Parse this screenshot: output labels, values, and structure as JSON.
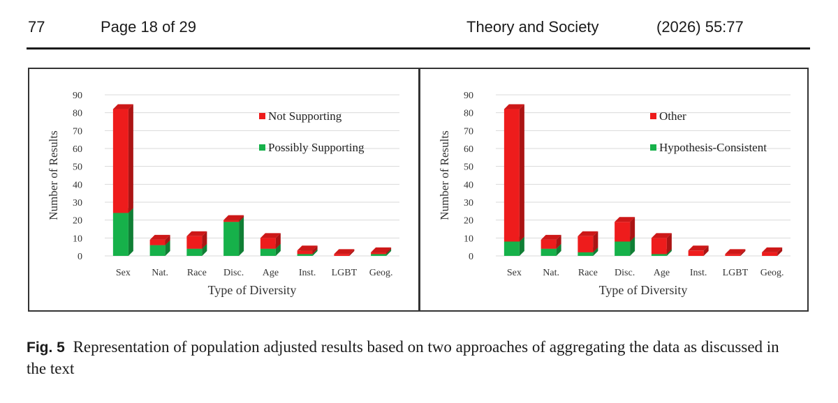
{
  "header": {
    "article_number": "77",
    "page_info": "Page 18 of 29",
    "journal": "Theory and Society",
    "volume": "(2026) 55:77"
  },
  "caption": {
    "label": "Fig. 5",
    "text": "Representation of population adjusted results based on two approaches of aggregating the data as discussed in the text"
  },
  "colors": {
    "red": "#ee1c1c",
    "green": "#16b14a",
    "grid": "#d9d9d9",
    "axis_text": "#333333"
  },
  "chart_data": [
    {
      "type": "bar",
      "stacked": true,
      "title": "",
      "xlabel": "Type of Diversity",
      "ylabel": "Number of Results",
      "ylim": [
        0,
        90
      ],
      "yticks": [
        0,
        10,
        20,
        30,
        40,
        50,
        60,
        70,
        80,
        90
      ],
      "grid": true,
      "legend_position": "top-right",
      "categories": [
        "Sex",
        "Nat.",
        "Race",
        "Disc.",
        "Age",
        "Inst.",
        "LGBT",
        "Geog."
      ],
      "series": [
        {
          "name": "Possibly Supporting",
          "color": "#16b14a",
          "values": [
            24,
            6,
            4,
            19,
            4,
            1,
            0,
            1
          ]
        },
        {
          "name": "Not Supporting",
          "color": "#ee1c1c",
          "values": [
            58,
            3,
            7,
            1,
            6,
            2,
            1,
            1
          ]
        }
      ]
    },
    {
      "type": "bar",
      "stacked": true,
      "title": "",
      "xlabel": "Type of Diversity",
      "ylabel": "Number of Results",
      "ylim": [
        0,
        90
      ],
      "yticks": [
        0,
        10,
        20,
        30,
        40,
        50,
        60,
        70,
        80,
        90
      ],
      "grid": true,
      "legend_position": "top-right",
      "categories": [
        "Sex",
        "Nat.",
        "Race",
        "Disc.",
        "Age",
        "Inst.",
        "LGBT",
        "Geog."
      ],
      "series": [
        {
          "name": "Hypothesis-Consistent",
          "color": "#16b14a",
          "values": [
            8,
            4,
            2,
            8,
            1,
            0,
            0,
            0
          ]
        },
        {
          "name": "Other",
          "color": "#ee1c1c",
          "values": [
            74,
            5,
            9,
            11,
            9,
            3,
            1,
            2
          ]
        }
      ]
    }
  ]
}
